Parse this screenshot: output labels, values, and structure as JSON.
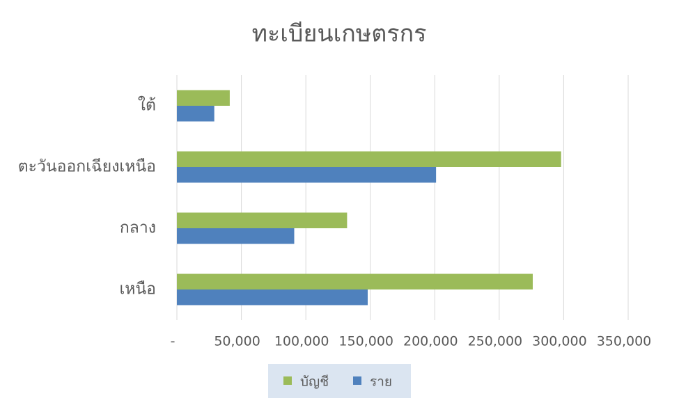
{
  "chart_data": {
    "type": "bar",
    "orientation": "horizontal",
    "title": "ทะเบียนเกษตรกร",
    "categories": [
      "เหนือ",
      "กลาง",
      "ตะวันออกเฉียงเหนือ",
      "ใต้"
    ],
    "series": [
      {
        "name": "บัญชี",
        "color": "#9bbb59",
        "values": [
          276000,
          132000,
          298000,
          41000
        ]
      },
      {
        "name": "ราย",
        "color": "#4f81bd",
        "values": [
          148000,
          91000,
          201000,
          29000
        ]
      }
    ],
    "xlim": [
      0,
      350000
    ],
    "xticks": [
      {
        "value": 0,
        "label": "-"
      },
      {
        "value": 50000,
        "label": "50,000"
      },
      {
        "value": 100000,
        "label": "100,000"
      },
      {
        "value": 150000,
        "label": "150,000"
      },
      {
        "value": 200000,
        "label": "200,000"
      },
      {
        "value": 250000,
        "label": "250,000"
      },
      {
        "value": 300000,
        "label": "300,000"
      },
      {
        "value": 350000,
        "label": "350,000"
      }
    ],
    "grid": true,
    "legend": "bottom"
  }
}
